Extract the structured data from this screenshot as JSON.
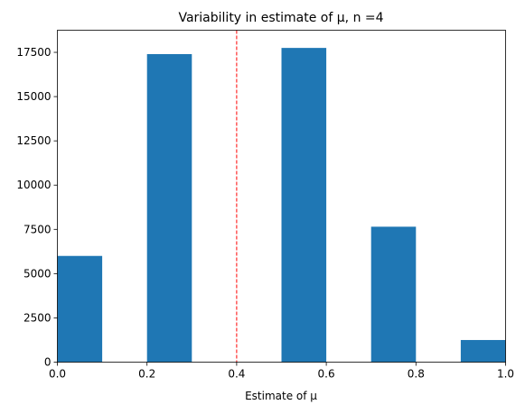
{
  "chart_data": {
    "type": "bar",
    "title": "Variability in estimate of μ, n =4",
    "xlabel": "Estimate of μ",
    "ylabel": "",
    "xlim": [
      0.0,
      1.0
    ],
    "ylim": [
      0,
      18750
    ],
    "bins": [
      {
        "x0": 0.0,
        "x1": 0.1,
        "count": 6000
      },
      {
        "x0": 0.1,
        "x1": 0.2,
        "count": 0
      },
      {
        "x0": 0.2,
        "x1": 0.3,
        "count": 17400
      },
      {
        "x0": 0.3,
        "x1": 0.4,
        "count": 0
      },
      {
        "x0": 0.4,
        "x1": 0.5,
        "count": 0
      },
      {
        "x0": 0.5,
        "x1": 0.6,
        "count": 17750
      },
      {
        "x0": 0.6,
        "x1": 0.7,
        "count": 0
      },
      {
        "x0": 0.7,
        "x1": 0.8,
        "count": 7650
      },
      {
        "x0": 0.8,
        "x1": 0.9,
        "count": 0
      },
      {
        "x0": 0.9,
        "x1": 1.0,
        "count": 1250
      }
    ],
    "x_ticks": [
      0.0,
      0.2,
      0.4,
      0.6,
      0.8,
      1.0
    ],
    "x_tick_labels": [
      "0.0",
      "0.2",
      "0.4",
      "0.6",
      "0.8",
      "1.0"
    ],
    "y_ticks": [
      0,
      2500,
      5000,
      7500,
      10000,
      12500,
      15000,
      17500
    ],
    "y_tick_labels": [
      "0",
      "2500",
      "5000",
      "7500",
      "10000",
      "12500",
      "15000",
      "17500"
    ],
    "reference_line": {
      "x": 0.4,
      "style": "dashed",
      "color": "#ff0000"
    },
    "bar_color": "#1f77b4",
    "grid": false,
    "legend": "none"
  }
}
